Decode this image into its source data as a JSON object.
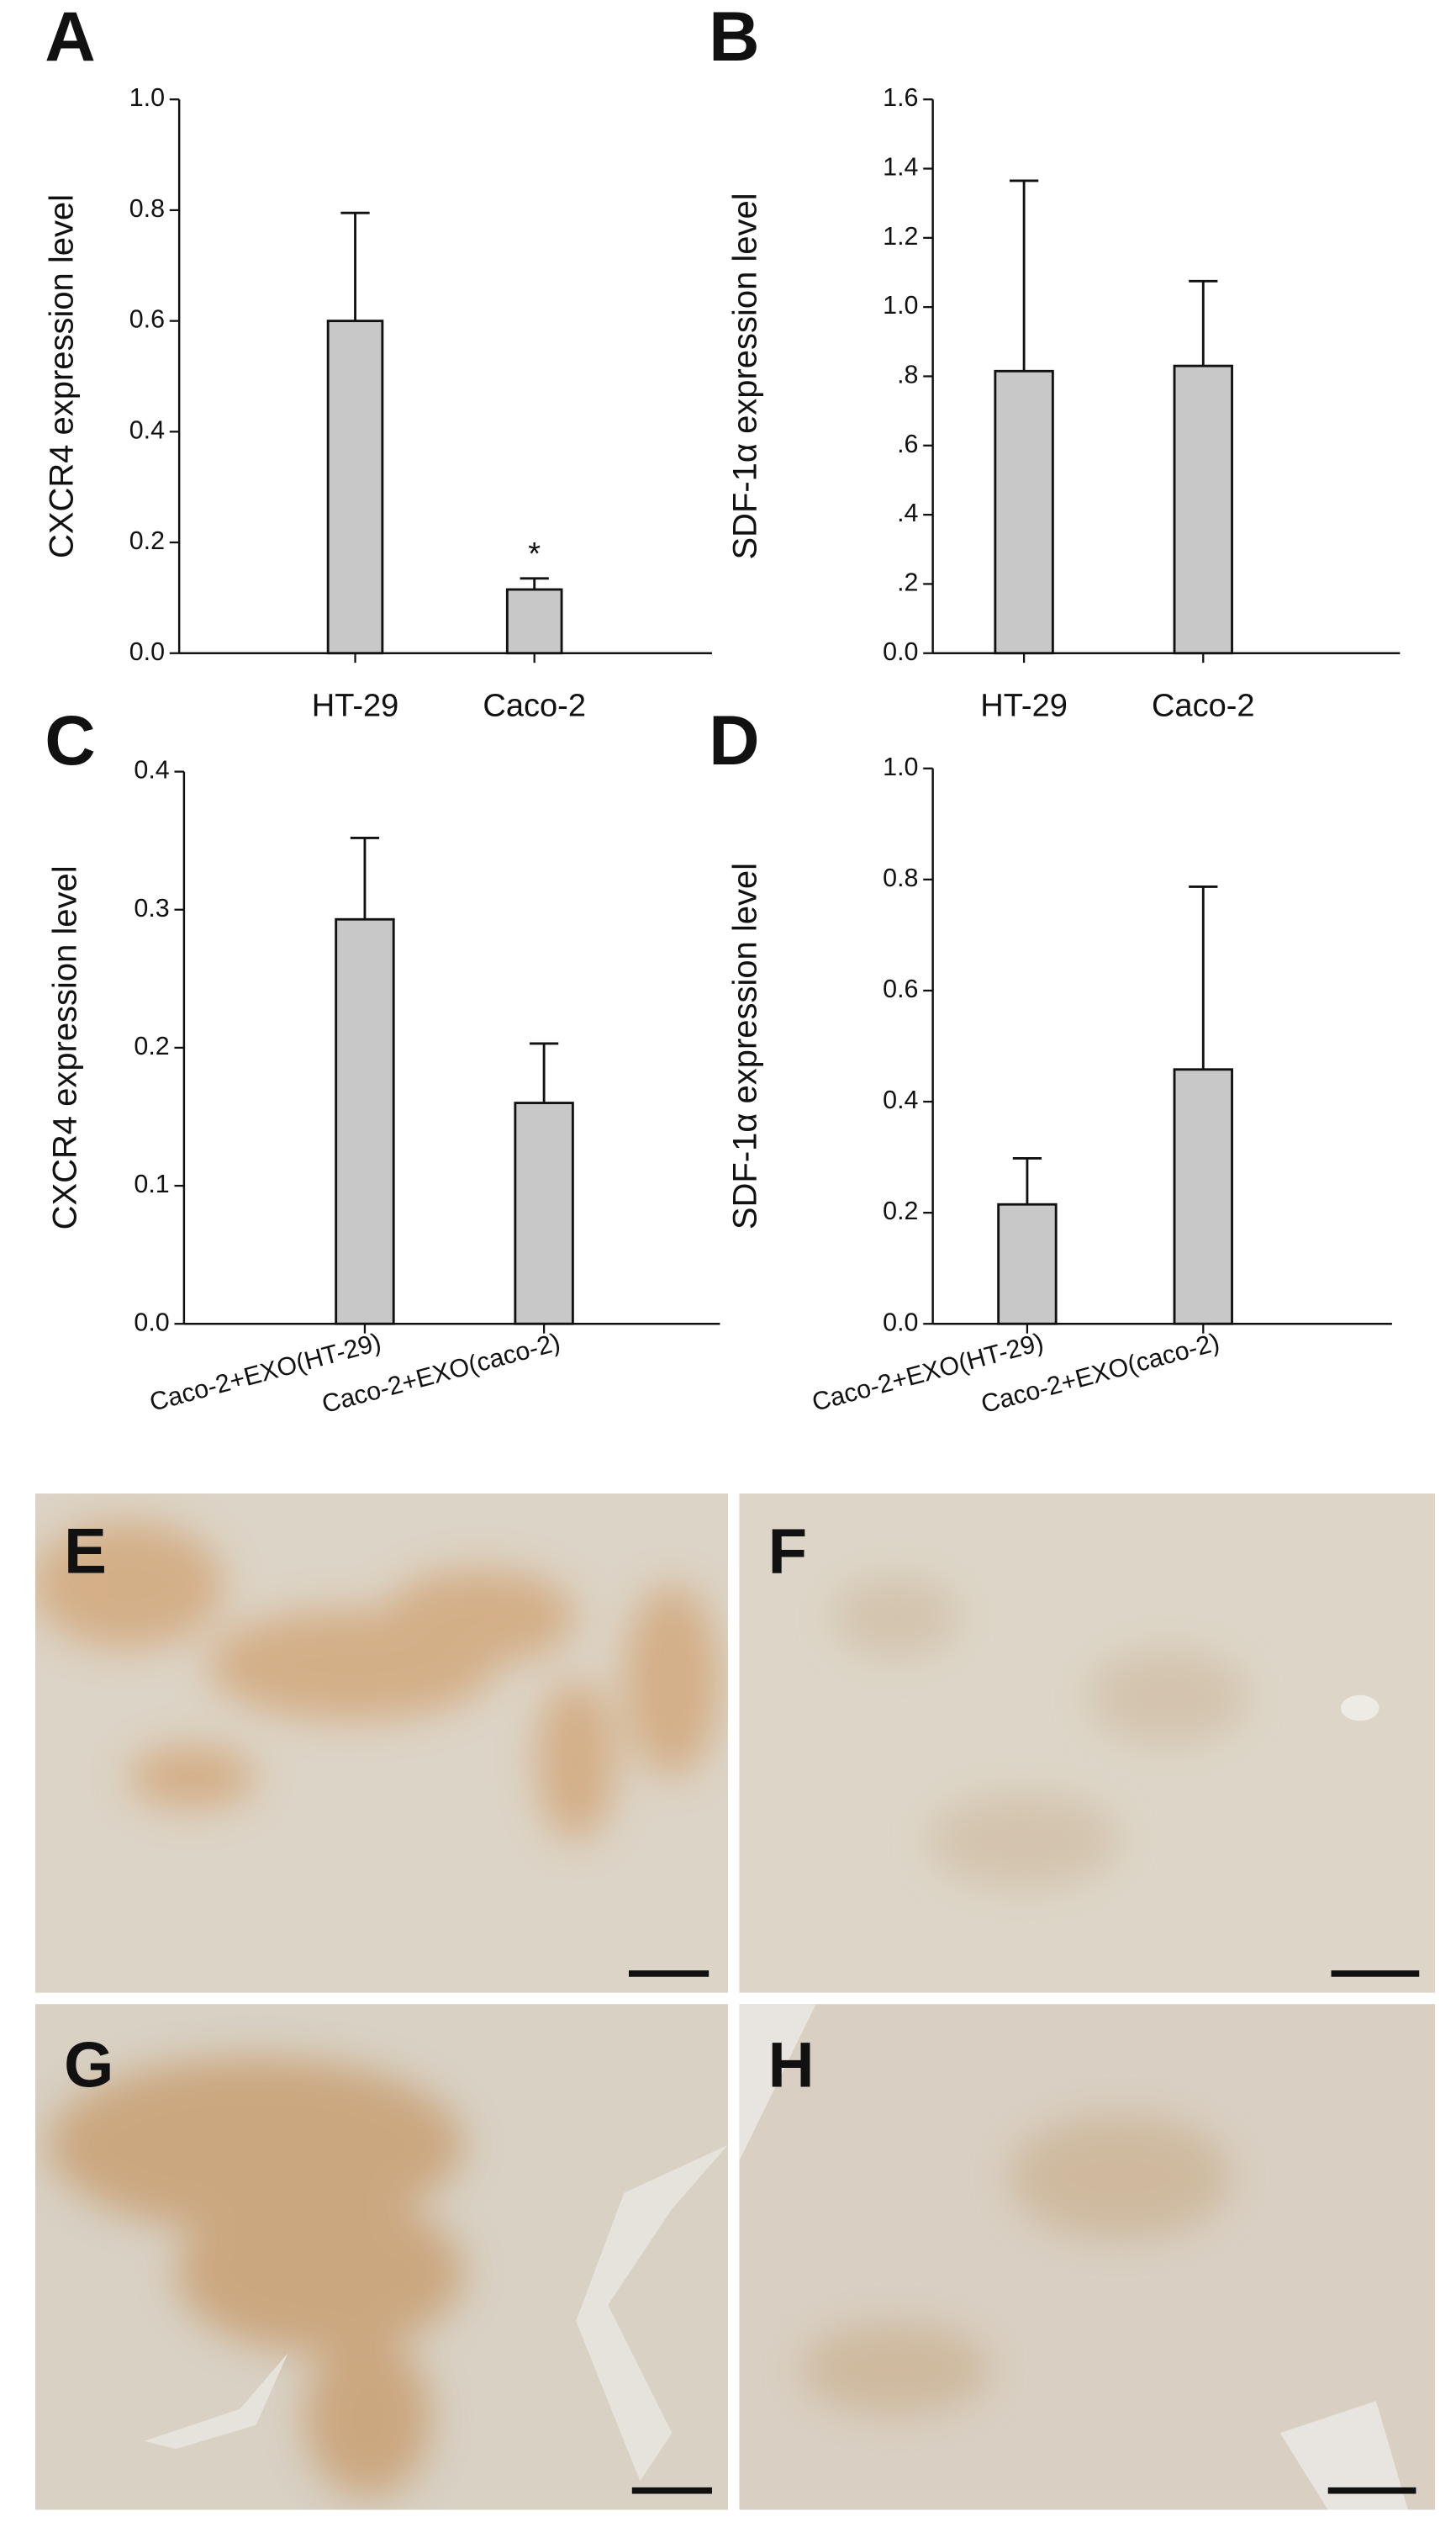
{
  "chart_data": [
    {
      "type": "bar",
      "panel": "A",
      "ylabel": "CXCR4 expression level",
      "categories": [
        "HT-29",
        "Caco-2"
      ],
      "values": [
        0.6,
        0.115
      ],
      "errors": [
        0.195,
        0.02
      ],
      "annotation": "*",
      "color": "#c8c8c8",
      "ylim": [
        0,
        1.0
      ],
      "yticks": [
        {
          "value": 0,
          "label": "0.0"
        },
        0.2,
        0.4,
        0.6,
        0.8,
        {
          "value": 1.0,
          "label": "1.0"
        }
      ]
    },
    {
      "type": "bar",
      "panel": "B",
      "ylabel": "SDF-1α expression level",
      "categories": [
        "HT-29",
        "Caco-2"
      ],
      "values": [
        0.815,
        0.83
      ],
      "errors": [
        0.55,
        0.245
      ],
      "color": "#c8c8c8",
      "ylim": [
        0,
        1.6
      ],
      "yticks": [
        {
          "value": 0,
          "label": "0.0"
        },
        {
          "value": 0.2,
          "label": ".2"
        },
        {
          "value": 0.4,
          "label": ".4"
        },
        {
          "value": 0.6,
          "label": ".6"
        },
        {
          "value": 0.8,
          "label": ".8"
        },
        {
          "value": 1.0,
          "label": "1.0"
        },
        1.2,
        1.4,
        1.6
      ]
    },
    {
      "type": "bar",
      "panel": "C",
      "ylabel": "CXCR4 expression level",
      "categories": [
        "Caco-2+EXO(HT-29)",
        "Caco-2+EXO(caco-2)"
      ],
      "values": [
        0.293,
        0.16
      ],
      "errors": [
        0.059,
        0.043
      ],
      "color": "#c8c8c8",
      "ylim": [
        0,
        0.4
      ],
      "yticks": [
        {
          "value": 0,
          "label": "0.0"
        },
        0.1,
        0.2,
        0.3,
        0.4
      ]
    },
    {
      "type": "bar",
      "panel": "D",
      "ylabel": "SDF-1α expression level",
      "categories": [
        "Caco-2+EXO(HT-29)",
        "Caco-2+EXO(caco-2)"
      ],
      "values": [
        0.215,
        0.458
      ],
      "errors": [
        0.083,
        0.329
      ],
      "color": "#c8c8c8",
      "ylim": [
        0,
        1.0
      ],
      "yticks": [
        {
          "value": 0,
          "label": "0.0"
        },
        0.2,
        0.4,
        0.6,
        0.8,
        {
          "value": 1.0,
          "label": "1.0"
        }
      ]
    }
  ],
  "images": [
    {
      "label": "E"
    },
    {
      "label": "F"
    },
    {
      "label": "G"
    },
    {
      "label": "H"
    }
  ]
}
